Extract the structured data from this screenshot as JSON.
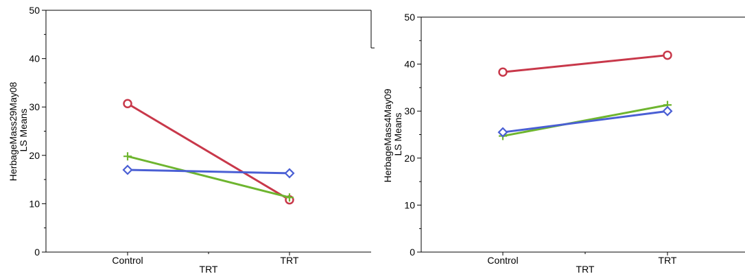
{
  "chart_data": [
    {
      "type": "line",
      "xlabel": "TRT",
      "ylabel_lines": [
        "HerbageMass29May08",
        "LS Means"
      ],
      "ylim": [
        0,
        50
      ],
      "yticks": [
        0,
        10,
        20,
        30,
        40,
        50
      ],
      "categories": [
        "Control",
        "TRT"
      ],
      "grid": false,
      "legend": "none",
      "series": [
        {
          "values": [
            30.7,
            10.8
          ],
          "color": "#c8384a",
          "marker": "circle"
        },
        {
          "values": [
            19.8,
            11.3
          ],
          "color": "#6eb52f",
          "marker": "plus"
        },
        {
          "values": [
            17.0,
            16.3
          ],
          "color": "#4a5fd4",
          "marker": "diamond"
        }
      ]
    },
    {
      "type": "line",
      "xlabel": "TRT",
      "ylabel_lines": [
        "HerbageMass4May09",
        "LS Means"
      ],
      "ylim": [
        0,
        50
      ],
      "yticks": [
        0,
        10,
        20,
        30,
        40,
        50
      ],
      "categories": [
        "Control",
        "TRT"
      ],
      "grid": false,
      "legend": "none",
      "series": [
        {
          "values": [
            38.3,
            41.9
          ],
          "color": "#c8384a",
          "marker": "circle"
        },
        {
          "values": [
            24.7,
            31.3
          ],
          "color": "#6eb52f",
          "marker": "plus"
        },
        {
          "values": [
            25.5,
            30.0
          ],
          "color": "#4a5fd4",
          "marker": "diamond"
        }
      ]
    }
  ]
}
